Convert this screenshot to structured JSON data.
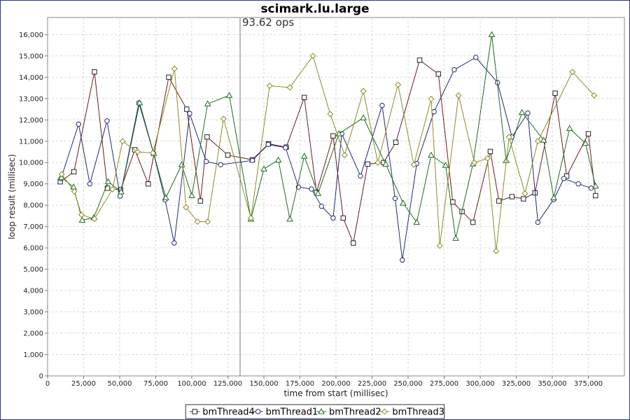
{
  "chart_data": {
    "type": "line",
    "title": "scimark.lu.large",
    "xlabel": "time from start (millisec)",
    "ylabel": "loop result (millisec)",
    "xlim": [
      0,
      400000
    ],
    "ylim": [
      0,
      16800
    ],
    "xticks": [
      0,
      25000,
      50000,
      75000,
      100000,
      125000,
      150000,
      175000,
      200000,
      225000,
      250000,
      275000,
      300000,
      325000,
      350000,
      375000
    ],
    "xtick_labels": [
      "0",
      "25,000",
      "50,000",
      "75,000",
      "100,000",
      "125,000",
      "150,000",
      "175,000",
      "200,000",
      "225,000",
      "250,000",
      "275,000",
      "300,000",
      "325,000",
      "350,000",
      "375,000"
    ],
    "yticks": [
      0,
      1000,
      2000,
      3000,
      4000,
      5000,
      6000,
      7000,
      8000,
      9000,
      10000,
      11000,
      12000,
      13000,
      14000,
      15000,
      16000
    ],
    "ytick_labels": [
      "0",
      "1,000",
      "2,000",
      "3,000",
      "4,000",
      "5,000",
      "6,000",
      "7,000",
      "8,000",
      "9,000",
      "10,000",
      "11,000",
      "12,000",
      "13,000",
      "14,000",
      "15,000",
      "16,000"
    ],
    "grid": true,
    "legend_position": "bottom",
    "annotation": {
      "x": 133500,
      "label": "93.62 ops"
    },
    "series": [
      {
        "name": "bmThread4",
        "color": "#6b1a1a",
        "marker": "square",
        "points": [
          [
            8800,
            9100
          ],
          [
            18300,
            9570
          ],
          [
            32500,
            14250
          ],
          [
            41500,
            8800
          ],
          [
            50600,
            8720
          ],
          [
            60500,
            10600
          ],
          [
            69800,
            9000
          ],
          [
            84000,
            14000
          ],
          [
            96500,
            12500
          ],
          [
            106000,
            8200
          ],
          [
            110600,
            11200
          ],
          [
            125000,
            10350
          ],
          [
            142000,
            10130
          ],
          [
            153200,
            10880
          ],
          [
            165500,
            10720
          ],
          [
            178000,
            13050
          ],
          [
            186500,
            8600
          ],
          [
            198000,
            11250
          ],
          [
            205000,
            7400
          ],
          [
            212000,
            6230
          ],
          [
            222000,
            9930
          ],
          [
            233000,
            10000
          ],
          [
            241500,
            10950
          ],
          [
            258000,
            14800
          ],
          [
            271000,
            14150
          ],
          [
            281000,
            8150
          ],
          [
            287400,
            7700
          ],
          [
            295000,
            7200
          ],
          [
            307000,
            10520
          ],
          [
            313000,
            8200
          ],
          [
            322000,
            8400
          ],
          [
            330000,
            8300
          ],
          [
            338000,
            8580
          ],
          [
            352000,
            13250
          ],
          [
            360000,
            9370
          ],
          [
            375000,
            11350
          ],
          [
            380000,
            8450
          ]
        ]
      },
      {
        "name": "bmThread1",
        "color": "#1f2a7a",
        "marker": "circle",
        "points": [
          [
            9300,
            9250
          ],
          [
            21500,
            11800
          ],
          [
            29300,
            9000
          ],
          [
            41200,
            11950
          ],
          [
            50300,
            8430
          ],
          [
            63300,
            12800
          ],
          [
            73500,
            10430
          ],
          [
            81500,
            8250
          ],
          [
            87800,
            6230
          ],
          [
            98500,
            12300
          ],
          [
            110000,
            10050
          ],
          [
            120000,
            9900
          ],
          [
            142000,
            10100
          ],
          [
            153000,
            10850
          ],
          [
            165000,
            10700
          ],
          [
            174000,
            8850
          ],
          [
            183000,
            8760
          ],
          [
            190000,
            7950
          ],
          [
            198000,
            7400
          ],
          [
            204000,
            11350
          ],
          [
            217000,
            9370
          ],
          [
            232000,
            12680
          ],
          [
            241000,
            8320
          ],
          [
            246000,
            5430
          ],
          [
            256000,
            9950
          ],
          [
            268000,
            12380
          ],
          [
            282000,
            14350
          ],
          [
            297000,
            14930
          ],
          [
            312000,
            13750
          ],
          [
            322000,
            11200
          ],
          [
            333000,
            12320
          ],
          [
            340000,
            7200
          ],
          [
            351000,
            8270
          ],
          [
            358000,
            9250
          ],
          [
            368000,
            9000
          ],
          [
            377000,
            8800
          ]
        ]
      },
      {
        "name": "bmThread2",
        "color": "#1f6b1f",
        "marker": "triangle",
        "points": [
          [
            9600,
            9300
          ],
          [
            18000,
            8850
          ],
          [
            24000,
            7300
          ],
          [
            32000,
            7420
          ],
          [
            42000,
            9100
          ],
          [
            51000,
            8630
          ],
          [
            63800,
            12800
          ],
          [
            73600,
            10430
          ],
          [
            82000,
            8350
          ],
          [
            93000,
            9900
          ],
          [
            100000,
            8450
          ],
          [
            111000,
            12750
          ],
          [
            126000,
            13150
          ],
          [
            141000,
            7350
          ],
          [
            150000,
            9700
          ],
          [
            160000,
            10120
          ],
          [
            168000,
            7350
          ],
          [
            178000,
            10300
          ],
          [
            187500,
            8550
          ],
          [
            202000,
            11350
          ],
          [
            219000,
            12100
          ],
          [
            234500,
            9920
          ],
          [
            246500,
            8100
          ],
          [
            256000,
            7200
          ],
          [
            266000,
            10350
          ],
          [
            276000,
            9870
          ],
          [
            283000,
            6450
          ],
          [
            295000,
            9940
          ],
          [
            308000,
            16000
          ],
          [
            318000,
            10100
          ],
          [
            329000,
            12350
          ],
          [
            344000,
            11050
          ],
          [
            351000,
            8350
          ],
          [
            362000,
            11600
          ],
          [
            373000,
            10900
          ],
          [
            380000,
            8900
          ]
        ]
      },
      {
        "name": "bmThread3",
        "color": "#8c8c24",
        "marker": "diamond",
        "points": [
          [
            9800,
            9450
          ],
          [
            18500,
            8650
          ],
          [
            23500,
            7550
          ],
          [
            32500,
            7360
          ],
          [
            45000,
            8750
          ],
          [
            52000,
            11000
          ],
          [
            62500,
            10500
          ],
          [
            73000,
            10450
          ],
          [
            88000,
            14400
          ],
          [
            96000,
            7900
          ],
          [
            104000,
            7230
          ],
          [
            111000,
            7230
          ],
          [
            122000,
            12050
          ],
          [
            141000,
            7400
          ],
          [
            154000,
            13600
          ],
          [
            168000,
            13520
          ],
          [
            184000,
            15000
          ],
          [
            196000,
            12270
          ],
          [
            206000,
            10350
          ],
          [
            219000,
            13350
          ],
          [
            229000,
            10000
          ],
          [
            243000,
            13650
          ],
          [
            254000,
            9900
          ],
          [
            266000,
            12980
          ],
          [
            272000,
            6100
          ],
          [
            285000,
            13150
          ],
          [
            296000,
            10000
          ],
          [
            305000,
            10200
          ],
          [
            311000,
            5850
          ],
          [
            320000,
            11200
          ],
          [
            331000,
            8550
          ],
          [
            340000,
            11000
          ],
          [
            364000,
            14250
          ],
          [
            379000,
            13150
          ]
        ]
      }
    ]
  }
}
